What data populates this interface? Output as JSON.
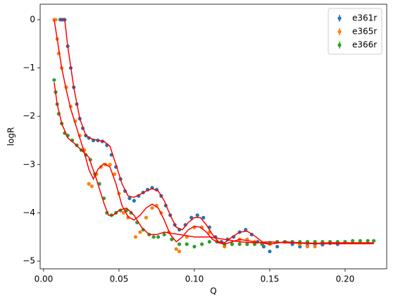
{
  "chart_data": {
    "type": "scatter",
    "xlabel": "Q",
    "ylabel": "logR",
    "xlim": [
      -0.0023,
      0.2276
    ],
    "ylim": [
      -5.16,
      0.32
    ],
    "xticks": [
      {
        "value": 0,
        "label": "0.00"
      },
      {
        "value": 0.05,
        "label": "0.05"
      },
      {
        "value": 0.1,
        "label": "0.10"
      },
      {
        "value": 0.15,
        "label": "0.15"
      },
      {
        "value": 0.2,
        "label": "0.20"
      }
    ],
    "yticks": [
      0,
      {
        "value": -1,
        "label": "−1"
      },
      {
        "value": -2,
        "label": "−2"
      },
      {
        "value": -3,
        "label": "−3"
      },
      {
        "value": -4,
        "label": "−4"
      },
      {
        "value": -5,
        "label": "−5"
      }
    ],
    "legend": "upper right",
    "series": [
      {
        "name": "e361r",
        "color": "#1f77b4",
        "x": [
          0.011,
          0.012,
          0.013,
          0.014,
          0.016,
          0.018,
          0.02,
          0.022,
          0.024,
          0.026,
          0.028,
          0.03,
          0.033,
          0.036,
          0.039,
          0.042,
          0.045,
          0.048,
          0.051,
          0.054,
          0.057,
          0.06,
          0.063,
          0.066,
          0.069,
          0.072,
          0.075,
          0.078,
          0.081,
          0.084,
          0.087,
          0.09,
          0.094,
          0.098,
          0.102,
          0.106,
          0.11,
          0.114,
          0.118,
          0.122,
          0.126,
          0.13,
          0.134,
          0.138,
          0.142,
          0.146,
          0.15,
          0.155,
          0.16,
          0.165,
          0.17,
          0.175,
          0.18,
          0.185,
          0.19,
          0.195
        ],
        "values": [
          0,
          0,
          0,
          0,
          -0.55,
          -1.0,
          -1.4,
          -1.75,
          -2.05,
          -2.25,
          -2.4,
          -2.45,
          -2.5,
          -2.5,
          -2.52,
          -2.6,
          -2.8,
          -3.05,
          -3.3,
          -3.55,
          -3.7,
          -3.75,
          -3.65,
          -3.58,
          -3.52,
          -3.48,
          -3.52,
          -3.65,
          -3.85,
          -4.05,
          -4.25,
          -4.35,
          -4.25,
          -4.1,
          -4.05,
          -4.1,
          -4.3,
          -4.5,
          -4.6,
          -4.55,
          -4.5,
          -4.4,
          -4.35,
          -4.45,
          -4.6,
          -4.7,
          -4.8,
          -4.7,
          -4.6,
          -4.65,
          -4.7,
          -4.68,
          -4.65,
          -4.66,
          -4.63,
          -4.65
        ]
      },
      {
        "name": "e365r",
        "color": "#ff7f0e",
        "x": [
          0.007,
          0.008,
          0.009,
          0.01,
          0.012,
          0.015,
          0.018,
          0.021,
          0.024,
          0.027,
          0.03,
          0.032,
          0.035,
          0.038,
          0.041,
          0.044,
          0.047,
          0.05,
          0.053,
          0.056,
          0.061,
          0.064,
          0.068,
          0.072,
          0.075,
          0.078,
          0.083,
          0.088,
          0.09,
          0.095,
          0.1,
          0.105,
          0.11,
          0.115,
          0.12,
          0.125,
          0.13,
          0.135,
          0.14,
          0.145,
          0.15,
          0.155,
          0.16,
          0.165,
          0.17,
          0.175,
          0.18,
          0.185,
          0.19
        ],
        "values": [
          0,
          0,
          -0.4,
          -0.7,
          -1.0,
          -1.4,
          -1.8,
          -2.1,
          -2.4,
          -2.7,
          -3.4,
          -3.45,
          -3.2,
          -3.05,
          -3.0,
          -3.0,
          -3.2,
          -3.6,
          -4.0,
          -4.1,
          -4.5,
          -4.4,
          -4.1,
          -3.9,
          -3.85,
          -4.0,
          -4.4,
          -4.75,
          -4.8,
          -4.5,
          -4.3,
          -4.3,
          -4.4,
          -4.6,
          -4.7,
          -4.65,
          -4.55,
          -4.55,
          -4.6,
          -4.65,
          -4.65,
          -4.6,
          -4.6,
          -4.6,
          -4.65,
          -4.7,
          -4.7,
          -4.6,
          -4.6
        ]
      },
      {
        "name": "e366r",
        "color": "#2ca02c",
        "x": [
          0.007,
          0.008,
          0.009,
          0.01,
          0.012,
          0.014,
          0.016,
          0.019,
          0.022,
          0.025,
          0.028,
          0.031,
          0.034,
          0.037,
          0.04,
          0.042,
          0.045,
          0.048,
          0.051,
          0.055,
          0.058,
          0.062,
          0.066,
          0.07,
          0.073,
          0.076,
          0.08,
          0.085,
          0.09,
          0.095,
          0.1,
          0.105,
          0.11,
          0.115,
          0.12,
          0.125,
          0.13,
          0.135,
          0.14,
          0.145,
          0.15,
          0.155,
          0.16,
          0.165,
          0.17,
          0.175,
          0.18,
          0.185,
          0.19,
          0.195,
          0.2,
          0.205,
          0.21,
          0.215,
          0.219
        ],
        "values": [
          -1.25,
          -1.5,
          -1.75,
          -1.95,
          -2.15,
          -2.35,
          -2.4,
          -2.5,
          -2.6,
          -2.7,
          -2.8,
          -2.9,
          -3.2,
          -3.4,
          -3.7,
          -4.0,
          -4.05,
          -4.0,
          -3.95,
          -3.95,
          -4.0,
          -4.2,
          -4.35,
          -4.45,
          -4.5,
          -4.5,
          -4.45,
          -4.55,
          -4.65,
          -4.65,
          -4.7,
          -4.65,
          -4.6,
          -4.6,
          -4.65,
          -4.65,
          -4.65,
          -4.65,
          -4.65,
          -4.65,
          -4.62,
          -4.6,
          -4.6,
          -4.6,
          -4.6,
          -4.6,
          -4.6,
          -4.6,
          -4.6,
          -4.6,
          -4.6,
          -4.58,
          -4.58,
          -4.58,
          -4.58
        ]
      }
    ],
    "fits": [
      {
        "color": "#ff0000",
        "x": [
          0.011,
          0.014,
          0.016,
          0.02,
          0.024,
          0.028,
          0.032,
          0.036,
          0.04,
          0.044,
          0.048,
          0.052,
          0.056,
          0.06,
          0.064,
          0.068,
          0.072,
          0.076,
          0.08,
          0.084,
          0.088,
          0.092,
          0.096,
          0.1,
          0.104,
          0.108,
          0.112,
          0.116,
          0.12,
          0.125,
          0.13,
          0.135,
          0.14,
          0.145,
          0.15,
          0.16,
          0.17,
          0.18,
          0.19,
          0.2,
          0.219
        ],
        "values": [
          0,
          0,
          -0.55,
          -1.4,
          -2.05,
          -2.4,
          -2.47,
          -2.5,
          -2.52,
          -2.62,
          -3.0,
          -3.4,
          -3.65,
          -3.68,
          -3.62,
          -3.55,
          -3.5,
          -3.55,
          -3.75,
          -4.05,
          -4.3,
          -4.35,
          -4.2,
          -4.1,
          -4.1,
          -4.25,
          -4.45,
          -4.6,
          -4.62,
          -4.5,
          -4.4,
          -4.38,
          -4.48,
          -4.6,
          -4.65,
          -4.6,
          -4.62,
          -4.63,
          -4.62,
          -4.62,
          -4.62
        ]
      },
      {
        "color": "#ff0000",
        "x": [
          0.007,
          0.009,
          0.012,
          0.015,
          0.018,
          0.021,
          0.024,
          0.027,
          0.03,
          0.033,
          0.036,
          0.04,
          0.044,
          0.048,
          0.052,
          0.056,
          0.06,
          0.064,
          0.068,
          0.072,
          0.076,
          0.08,
          0.084,
          0.088,
          0.092,
          0.096,
          0.1,
          0.104,
          0.108,
          0.112,
          0.116,
          0.12,
          0.13,
          0.14,
          0.15,
          0.16,
          0.17,
          0.18,
          0.19,
          0.2,
          0.219
        ],
        "values": [
          0,
          -0.4,
          -1.0,
          -1.45,
          -1.85,
          -2.15,
          -2.45,
          -2.75,
          -3.1,
          -3.3,
          -3.1,
          -2.98,
          -3.05,
          -3.4,
          -3.85,
          -4.08,
          -4.15,
          -4.05,
          -3.9,
          -3.82,
          -3.9,
          -4.15,
          -4.45,
          -4.6,
          -4.5,
          -4.35,
          -4.28,
          -4.3,
          -4.4,
          -4.55,
          -4.62,
          -4.65,
          -4.55,
          -4.6,
          -4.65,
          -4.6,
          -4.63,
          -4.64,
          -4.63,
          -4.63,
          -4.63
        ]
      },
      {
        "color": "#ff0000",
        "x": [
          0.007,
          0.009,
          0.012,
          0.016,
          0.02,
          0.025,
          0.03,
          0.035,
          0.04,
          0.043,
          0.046,
          0.05,
          0.055,
          0.06,
          0.065,
          0.07,
          0.075,
          0.08,
          0.09,
          0.1,
          0.11,
          0.12,
          0.13,
          0.14,
          0.15,
          0.16,
          0.17,
          0.18,
          0.19,
          0.2,
          0.219
        ],
        "values": [
          -1.3,
          -1.75,
          -2.15,
          -2.45,
          -2.55,
          -2.7,
          -2.85,
          -3.3,
          -3.8,
          -4.05,
          -4.05,
          -3.95,
          -3.9,
          -4.05,
          -4.3,
          -4.45,
          -4.45,
          -4.4,
          -4.45,
          -4.5,
          -4.5,
          -4.55,
          -4.6,
          -4.62,
          -4.6,
          -4.62,
          -4.63,
          -4.64,
          -4.64,
          -4.64,
          -4.64
        ]
      }
    ]
  }
}
